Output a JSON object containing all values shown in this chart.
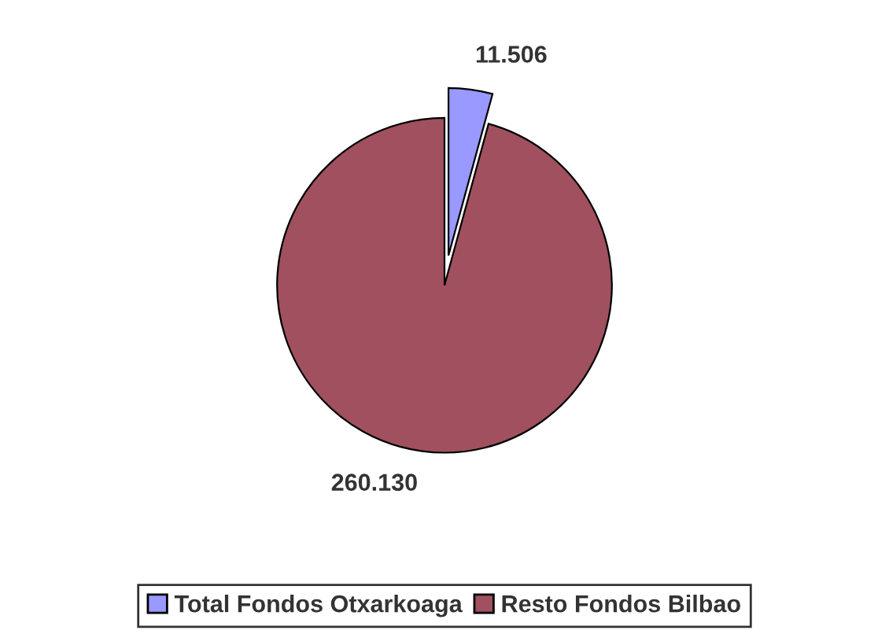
{
  "chart_data": {
    "type": "pie",
    "categories": [
      "Total Fondos Otxarkoaga",
      "Resto Fondos Bilbao"
    ],
    "values": [
      11506,
      260130
    ],
    "value_labels": [
      "11.506",
      "260.130"
    ],
    "colors": [
      "#9999ff",
      "#a0505e"
    ],
    "legend": "bottom"
  }
}
